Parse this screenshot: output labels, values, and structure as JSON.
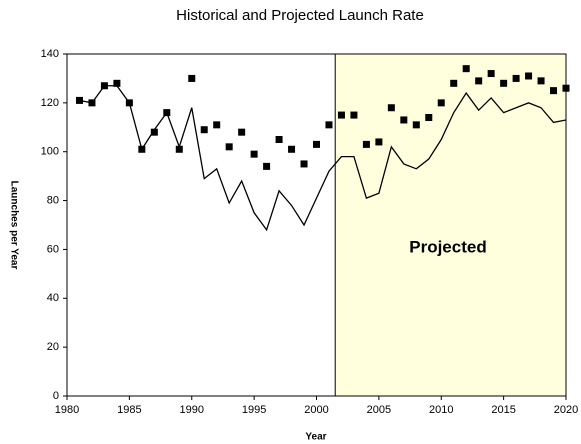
{
  "chart_data": {
    "type": "line",
    "title": "Historical and Projected Launch Rate",
    "xlabel": "Year",
    "ylabel": "Launches per Year",
    "x": [
      1981,
      1982,
      1983,
      1984,
      1985,
      1986,
      1987,
      1988,
      1989,
      1990,
      1991,
      1992,
      1993,
      1994,
      1995,
      1996,
      1997,
      1998,
      1999,
      2000,
      2001,
      2002,
      2003,
      2004,
      2005,
      2006,
      2007,
      2008,
      2009,
      2010,
      2011,
      2012,
      2013,
      2014,
      2015,
      2016,
      2017,
      2018,
      2019,
      2020
    ],
    "series": [
      {
        "name": "Points",
        "style": "marker",
        "color": "#000000",
        "values": [
          121,
          120,
          127,
          128,
          120,
          101,
          108,
          116,
          101,
          130,
          109,
          111,
          102,
          108,
          99,
          94,
          105,
          101,
          95,
          103,
          111,
          115,
          115,
          103,
          104,
          118,
          113,
          111,
          114,
          120,
          128,
          134,
          129,
          132,
          128,
          130,
          131,
          129,
          125,
          126
        ]
      },
      {
        "name": "Line",
        "style": "line",
        "color": "#000000",
        "values": [
          121,
          120,
          127,
          127,
          120,
          101,
          109,
          116,
          102,
          118,
          89,
          93,
          79,
          88,
          75,
          68,
          84,
          78,
          70,
          81,
          92,
          98,
          98,
          81,
          83,
          102,
          95,
          93,
          97,
          105,
          116,
          124,
          117,
          122,
          116,
          118,
          120,
          118,
          112,
          113
        ]
      }
    ],
    "xlim": [
      1980,
      2020
    ],
    "xticks": [
      1980,
      1985,
      1990,
      1995,
      2000,
      2005,
      2010,
      2015,
      2020
    ],
    "ylim": [
      0,
      140
    ],
    "yticks": [
      0,
      20,
      40,
      60,
      80,
      100,
      120,
      140
    ],
    "shaded_from": 2001.5,
    "annotation": "Projected",
    "grid": false
  }
}
